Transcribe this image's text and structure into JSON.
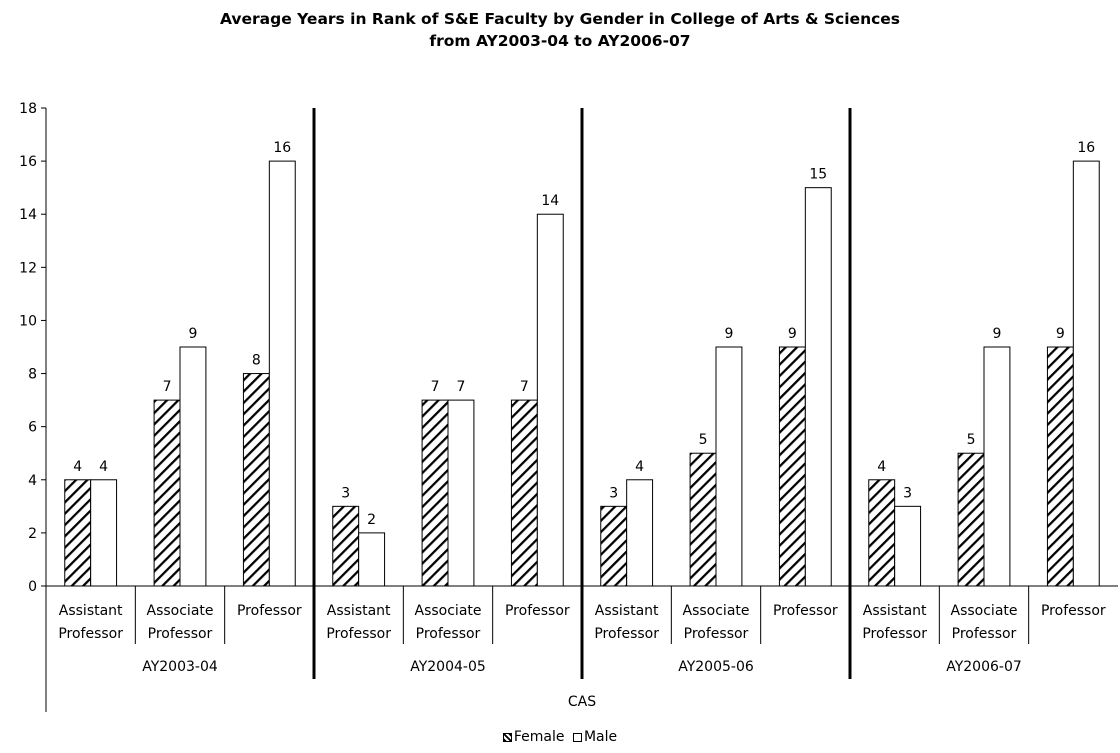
{
  "chart_data": {
    "type": "bar",
    "title_line1": "Average Years in Rank of S&E Faculty by Gender in College of Arts & Sciences",
    "title_line2": "from AY2003-04 to AY2006-07",
    "ylim": [
      0,
      18
    ],
    "yticks": [
      0,
      2,
      4,
      6,
      8,
      10,
      12,
      14,
      16,
      18
    ],
    "top_category": "CAS",
    "groups": [
      {
        "label": "AY2003-04",
        "categories": [
          {
            "label_lines": [
              "Assistant",
              "Professor"
            ],
            "female": 4,
            "male": 4
          },
          {
            "label_lines": [
              "Associate",
              "Professor"
            ],
            "female": 7,
            "male": 9
          },
          {
            "label_lines": [
              "Professor"
            ],
            "female": 8,
            "male": 16
          }
        ]
      },
      {
        "label": "AY2004-05",
        "categories": [
          {
            "label_lines": [
              "Assistant",
              "Professor"
            ],
            "female": 3,
            "male": 2
          },
          {
            "label_lines": [
              "Associate",
              "Professor"
            ],
            "female": 7,
            "male": 7
          },
          {
            "label_lines": [
              "Professor"
            ],
            "female": 7,
            "male": 14
          }
        ]
      },
      {
        "label": "AY2005-06",
        "categories": [
          {
            "label_lines": [
              "Assistant",
              "Professor"
            ],
            "female": 3,
            "male": 4
          },
          {
            "label_lines": [
              "Associate",
              "Professor"
            ],
            "female": 5,
            "male": 9
          },
          {
            "label_lines": [
              "Professor"
            ],
            "female": 9,
            "male": 15
          }
        ]
      },
      {
        "label": "AY2006-07",
        "categories": [
          {
            "label_lines": [
              "Assistant",
              "Professor"
            ],
            "female": 4,
            "male": 3
          },
          {
            "label_lines": [
              "Associate",
              "Professor"
            ],
            "female": 5,
            "male": 9
          },
          {
            "label_lines": [
              "Professor"
            ],
            "female": 9,
            "male": 16
          }
        ]
      }
    ],
    "series": [
      {
        "key": "female",
        "name": "Female",
        "pattern": "diagonal-hatch"
      },
      {
        "key": "male",
        "name": "Male",
        "pattern": "white"
      }
    ],
    "legend_position": "bottom-center",
    "grid": false
  }
}
